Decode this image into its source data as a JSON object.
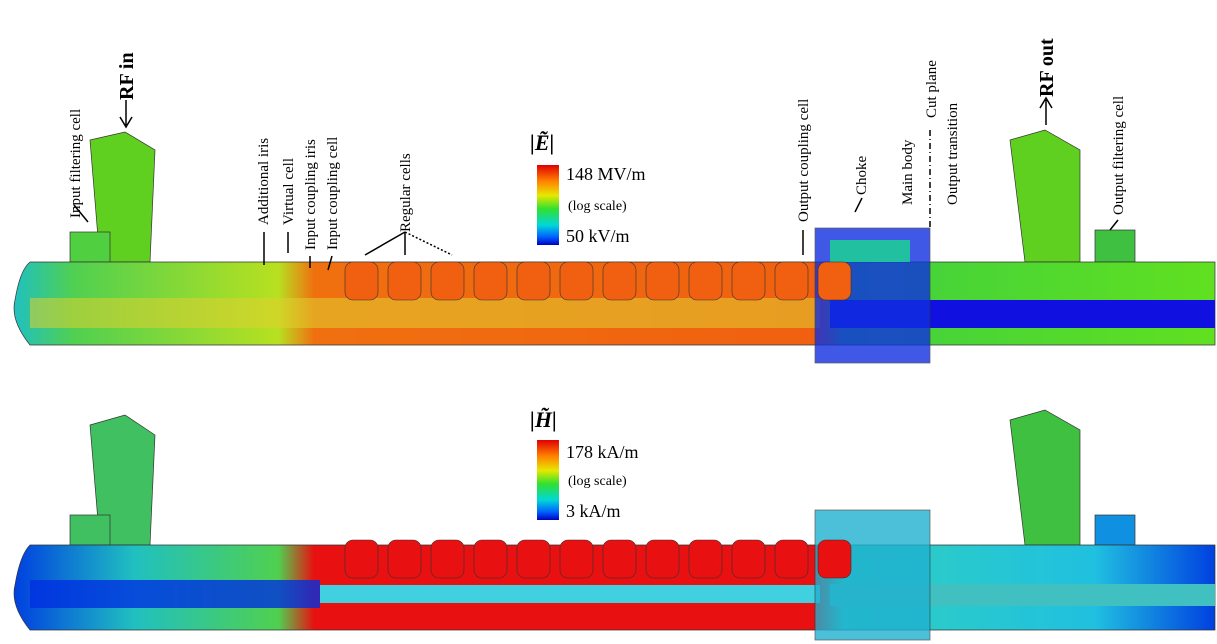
{
  "labels": {
    "input_filtering_cell": "Input filtering cell",
    "rf_in": "RF in",
    "additional_iris": "Additional iris",
    "virtual_cell": "Virtual cell",
    "input_coupling_iris": "Input coupling iris",
    "input_coupling_cell": "Input coupling cell",
    "regular_cells": "Regular cells",
    "output_coupling_cell": "Output coupling cell",
    "choke": "Choke",
    "main_body": "Main body",
    "cut_plane": "Cut plane",
    "output_transition": "Output transition",
    "rf_out": "RF out",
    "output_filtering_cell": "Output filtering cell"
  },
  "e_field": {
    "symbol": "|Ẽ|",
    "max": "148 MV/m",
    "scale": "(log scale)",
    "min": "50 kV/m"
  },
  "h_field": {
    "symbol": "|H̃|",
    "max": "178 kA/m",
    "scale": "(log scale)",
    "min": "3 kA/m"
  }
}
